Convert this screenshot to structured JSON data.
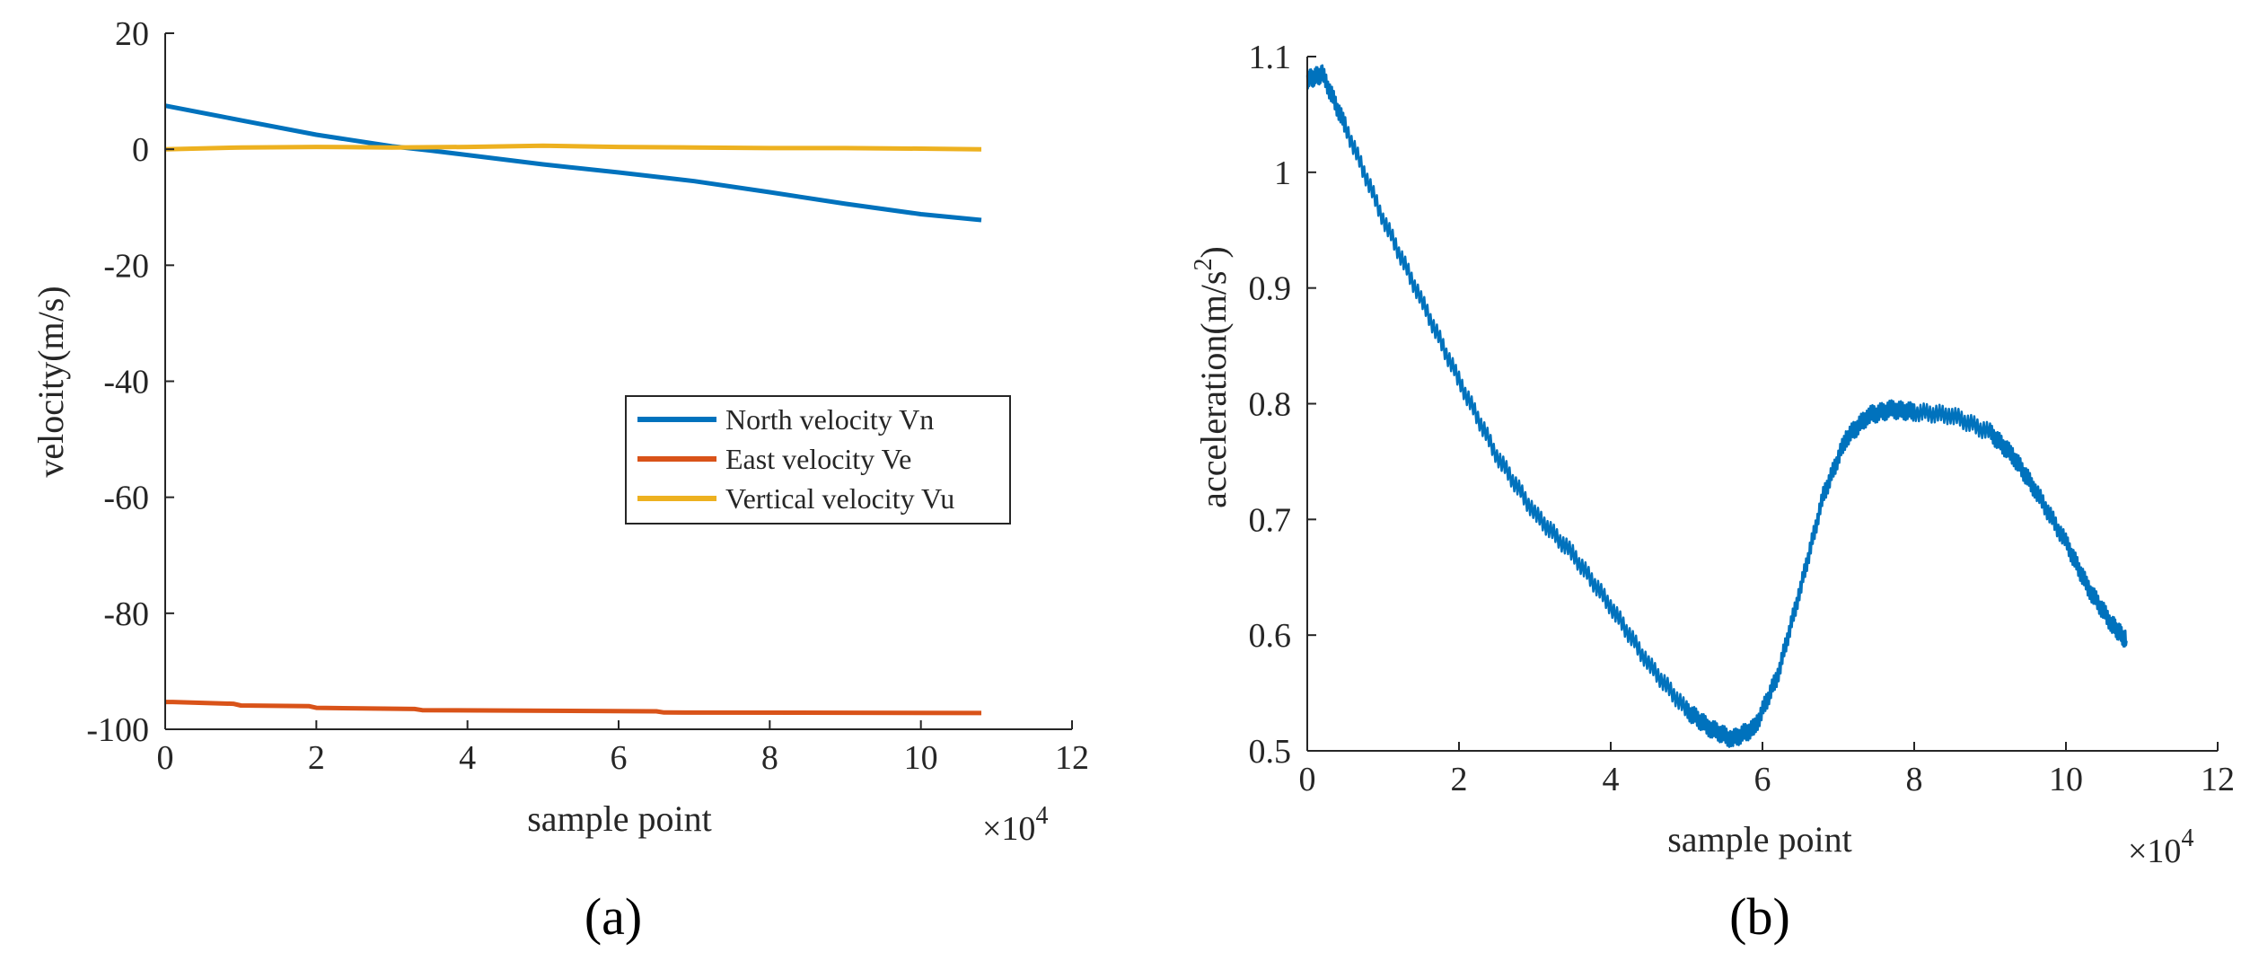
{
  "chart_data": [
    {
      "type": "line",
      "panel_label": "(a)",
      "xlabel": "sample point",
      "ylabel": "velocity(m/s)",
      "x_multiplier": "×10",
      "x_multiplier_exp": "4",
      "xlim": [
        0,
        12
      ],
      "ylim": [
        -100,
        20
      ],
      "xticks": [
        0,
        2,
        4,
        6,
        8,
        10,
        12
      ],
      "yticks": [
        20,
        0,
        -20,
        -40,
        -60,
        -80,
        -100
      ],
      "legend_position": "center-right",
      "series": [
        {
          "name": "North velocity Vn",
          "color": "#0072bd",
          "x": [
            0,
            1,
            2,
            3,
            3.5,
            4,
            5,
            6,
            7,
            8,
            9,
            10,
            10.8
          ],
          "y": [
            7.5,
            5,
            2.5,
            0.5,
            -0.2,
            -1,
            -2.6,
            -4,
            -5.5,
            -7.4,
            -9.4,
            -11.2,
            -12.2
          ]
        },
        {
          "name": "East velocity Ve",
          "color": "#d95319",
          "x": [
            0,
            0.1,
            0.9,
            1,
            1.9,
            2,
            3.3,
            3.4,
            6.5,
            6.6,
            10.8
          ],
          "y": [
            -95.3,
            -95.3,
            -95.6,
            -95.9,
            -96.0,
            -96.3,
            -96.5,
            -96.7,
            -96.9,
            -97.1,
            -97.2
          ]
        },
        {
          "name": "Vertical velocity Vu",
          "color": "#edb120",
          "x": [
            0,
            1,
            2,
            3,
            4,
            5,
            6,
            7,
            8,
            9,
            10,
            10.8
          ],
          "y": [
            0,
            0.3,
            0.4,
            0.3,
            0.4,
            0.6,
            0.4,
            0.3,
            0.2,
            0.2,
            0.1,
            0
          ]
        }
      ]
    },
    {
      "type": "line",
      "panel_label": "(b)",
      "xlabel": "sample point",
      "ylabel": "acceleration(m/s",
      "ylabel_sup": "2",
      "ylabel_close": ")",
      "x_multiplier": "×10",
      "x_multiplier_exp": "4",
      "xlim": [
        0,
        12
      ],
      "ylim": [
        0.5,
        1.1
      ],
      "xticks": [
        0,
        2,
        4,
        6,
        8,
        10,
        12
      ],
      "yticks": [
        1.1,
        1,
        0.9,
        0.8,
        0.7,
        0.6,
        0.5
      ],
      "series": [
        {
          "name": "acceleration",
          "color": "#0072bd",
          "x": [
            0,
            0.2,
            0.5,
            1,
            1.5,
            2,
            2.5,
            3,
            3.5,
            4,
            4.5,
            5,
            5.3,
            5.6,
            5.9,
            6.2,
            6.5,
            6.8,
            7.1,
            7.4,
            7.7,
            8,
            8.5,
            9,
            9.3,
            9.6,
            10,
            10.3,
            10.6,
            10.8
          ],
          "y": [
            1.08,
            1.085,
            1.04,
            0.96,
            0.89,
            0.82,
            0.755,
            0.705,
            0.67,
            0.625,
            0.575,
            0.535,
            0.52,
            0.51,
            0.52,
            0.565,
            0.64,
            0.72,
            0.77,
            0.79,
            0.795,
            0.793,
            0.79,
            0.775,
            0.755,
            0.725,
            0.68,
            0.64,
            0.61,
            0.595
          ]
        }
      ]
    }
  ]
}
